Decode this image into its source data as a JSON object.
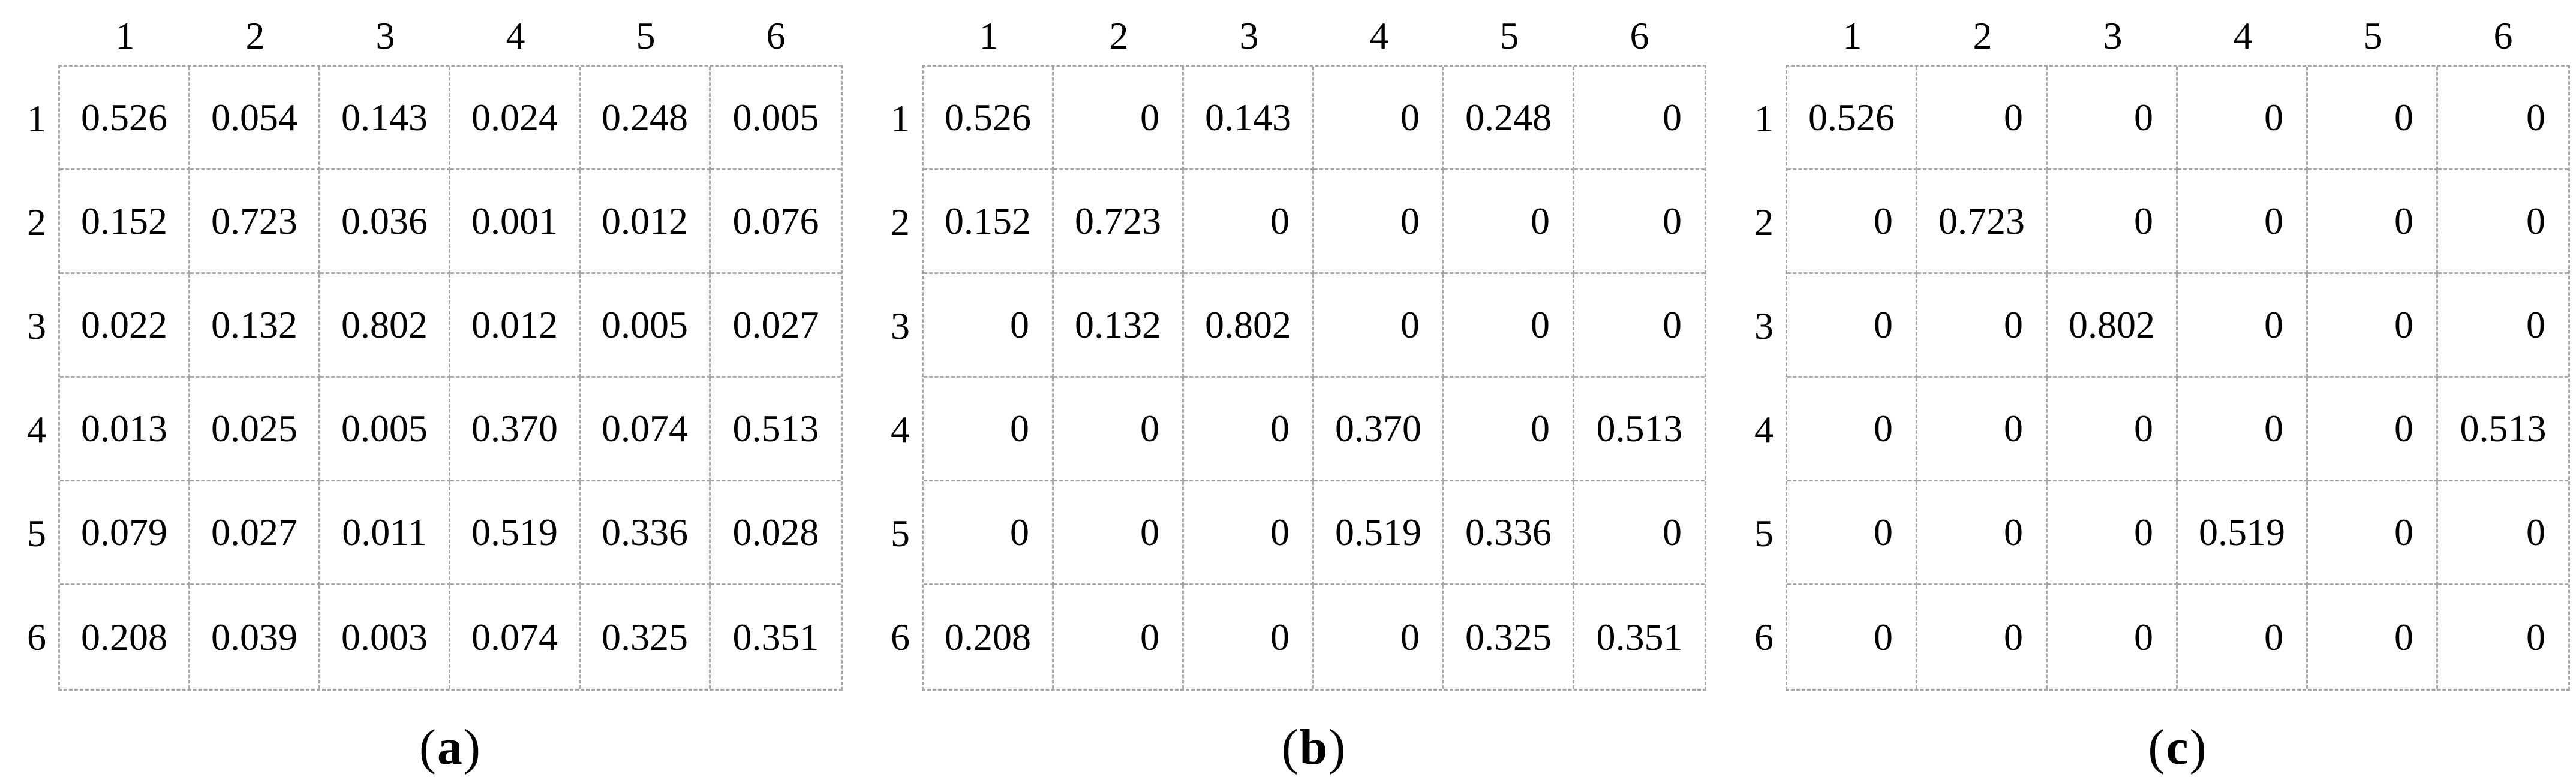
{
  "figure": {
    "colors": {
      "border": "#a9a9a9",
      "text": "#000000"
    },
    "panels": [
      {
        "label_open": "(",
        "label_letter": "a",
        "label_close": ")",
        "col_headers": [
          "1",
          "2",
          "3",
          "4",
          "5",
          "6"
        ],
        "row_headers": [
          "1",
          "2",
          "3",
          "4",
          "5",
          "6"
        ],
        "rows": [
          [
            "0.526",
            "0.054",
            "0.143",
            "0.024",
            "0.248",
            "0.005"
          ],
          [
            "0.152",
            "0.723",
            "0.036",
            "0.001",
            "0.012",
            "0.076"
          ],
          [
            "0.022",
            "0.132",
            "0.802",
            "0.012",
            "0.005",
            "0.027"
          ],
          [
            "0.013",
            "0.025",
            "0.005",
            "0.370",
            "0.074",
            "0.513"
          ],
          [
            "0.079",
            "0.027",
            "0.011",
            "0.519",
            "0.336",
            "0.028"
          ],
          [
            "0.208",
            "0.039",
            "0.003",
            "0.074",
            "0.325",
            "0.351"
          ]
        ]
      },
      {
        "label_open": "(",
        "label_letter": "b",
        "label_close": ")",
        "col_headers": [
          "1",
          "2",
          "3",
          "4",
          "5",
          "6"
        ],
        "row_headers": [
          "1",
          "2",
          "3",
          "4",
          "5",
          "6"
        ],
        "rows": [
          [
            "0.526",
            "0",
            "0.143",
            "0",
            "0.248",
            "0"
          ],
          [
            "0.152",
            "0.723",
            "0",
            "0",
            "0",
            "0"
          ],
          [
            "0",
            "0.132",
            "0.802",
            "0",
            "0",
            "0"
          ],
          [
            "0",
            "0",
            "0",
            "0.370",
            "0",
            "0.513"
          ],
          [
            "0",
            "0",
            "0",
            "0.519",
            "0.336",
            "0"
          ],
          [
            "0.208",
            "0",
            "0",
            "0",
            "0.325",
            "0.351"
          ]
        ]
      },
      {
        "label_open": "(",
        "label_letter": "c",
        "label_close": ")",
        "col_headers": [
          "1",
          "2",
          "3",
          "4",
          "5",
          "6"
        ],
        "row_headers": [
          "1",
          "2",
          "3",
          "4",
          "5",
          "6"
        ],
        "rows": [
          [
            "0.526",
            "0",
            "0",
            "0",
            "0",
            "0"
          ],
          [
            "0",
            "0.723",
            "0",
            "0",
            "0",
            "0"
          ],
          [
            "0",
            "0",
            "0.802",
            "0",
            "0",
            "0"
          ],
          [
            "0",
            "0",
            "0",
            "0",
            "0",
            "0.513"
          ],
          [
            "0",
            "0",
            "0",
            "0.519",
            "0",
            "0"
          ],
          [
            "0",
            "0",
            "0",
            "0",
            "0",
            "0"
          ]
        ]
      }
    ]
  }
}
